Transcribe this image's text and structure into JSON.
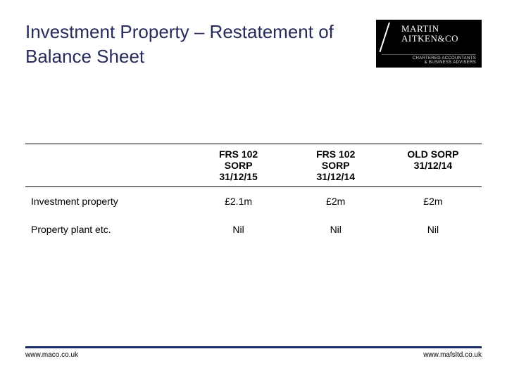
{
  "title": "Investment Property – Restatement of Balance Sheet",
  "logo": {
    "line1": "MARTIN",
    "line2": "AITKEN",
    "amp_co": "&CO",
    "sub1": "CHARTERED ACCOUNTANTS",
    "sub2": "& BUSINESS ADVISERS"
  },
  "table": {
    "headers": {
      "rowlabel": "",
      "col1": {
        "l1": "FRS 102",
        "l2": "SORP",
        "l3": "31/12/15"
      },
      "col2": {
        "l1": "FRS 102",
        "l2": "SORP",
        "l3": "31/12/14"
      },
      "col3": {
        "l1": "OLD SORP",
        "l2": "31/12/14",
        "l3": ""
      }
    },
    "rows": [
      {
        "label": "Investment property",
        "c1": "£2.1m",
        "c2": "£2m",
        "c3": "£2m"
      },
      {
        "label": "Property plant etc.",
        "c1": "Nil",
        "c2": "Nil",
        "c3": "Nil"
      }
    ]
  },
  "footer": {
    "left": "www.maco.co.uk",
    "right": "www.mafsltd.co.uk"
  },
  "colors": {
    "title": "#262c5a",
    "rule": "#1b2a6b",
    "logo_bg": "#000000",
    "logo_fg": "#ffffff"
  }
}
